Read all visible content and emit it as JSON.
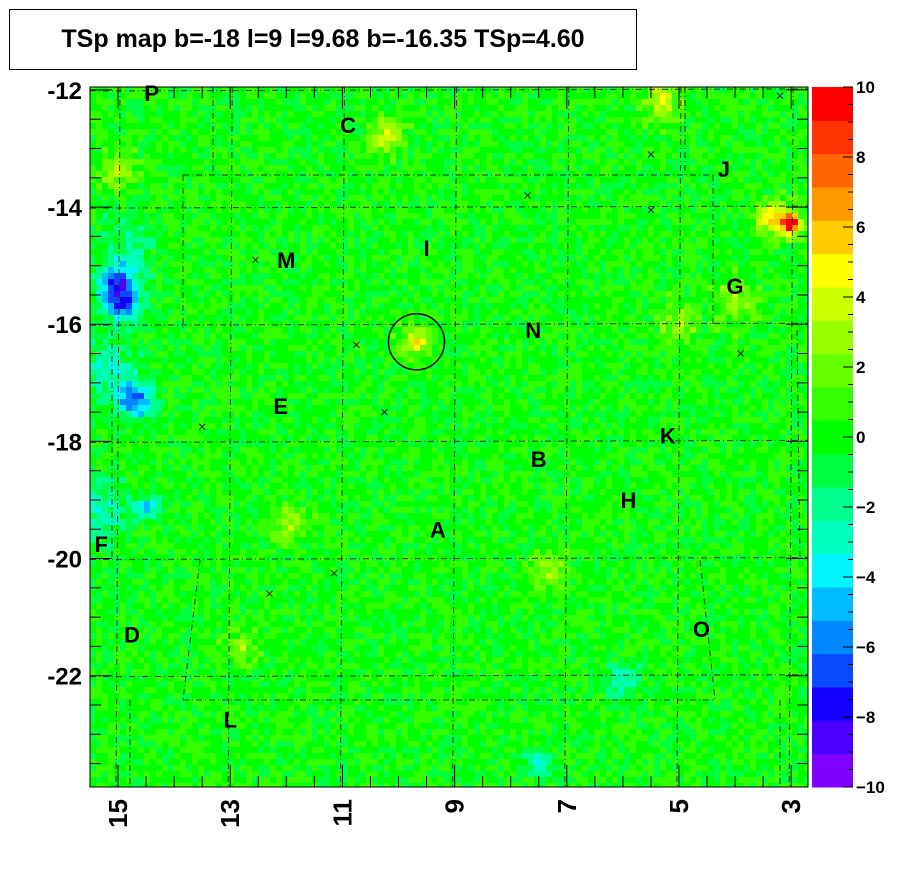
{
  "title": "TSp map b=-18 l=9 l=9.68 b=-16.35 TSp=4.60",
  "chart_data": {
    "type": "heatmap",
    "title": "TSp map b=-18 l=9 l=9.68 b=-16.35 TSp=4.60",
    "xlabel": "",
    "ylabel": "",
    "xlim": [
      15.5,
      2.7
    ],
    "ylim": [
      -23.9,
      -11.95
    ],
    "x_ticks": [
      15,
      13,
      11,
      9,
      7,
      5,
      3
    ],
    "y_ticks": [
      -12,
      -14,
      -16,
      -18,
      -20,
      -22
    ],
    "z_range": [
      -10,
      10
    ],
    "z_ticks": [
      10,
      8,
      6,
      4,
      2,
      0,
      -2,
      -4,
      -6,
      -8,
      -10
    ],
    "palette": [
      "#7f00ff",
      "#4b00ff",
      "#1400ff",
      "#0a4bff",
      "#0088ff",
      "#00bbff",
      "#00f5ff",
      "#00ffbf",
      "#00ff8c",
      "#00ff40",
      "#00ff00",
      "#33ff00",
      "#66ff00",
      "#99ff00",
      "#ccff00",
      "#ffff00",
      "#ffcc00",
      "#ff9900",
      "#ff6600",
      "#ff3300",
      "#ff0000"
    ],
    "background_color": "#1ef01a",
    "hotspots": [
      {
        "l": 15.0,
        "b": -15.3,
        "z": -7,
        "r": 0.35
      },
      {
        "l": 14.9,
        "b": -15.7,
        "z": -6,
        "r": 0.3
      },
      {
        "l": 14.7,
        "b": -17.3,
        "z": -7,
        "r": 0.3
      },
      {
        "l": 15.2,
        "b": -16.8,
        "z": -3,
        "r": 0.5
      },
      {
        "l": 15.3,
        "b": -19.2,
        "z": -3,
        "r": 0.5
      },
      {
        "l": 14.5,
        "b": -19.1,
        "z": -4,
        "r": 0.2
      },
      {
        "l": 14.8,
        "b": -14.6,
        "z": -2,
        "r": 0.5
      },
      {
        "l": 3.0,
        "b": -14.3,
        "z": 9,
        "r": 0.18
      },
      {
        "l": 3.3,
        "b": -14.2,
        "z": 5,
        "r": 0.3
      },
      {
        "l": 9.68,
        "b": -16.3,
        "z": 5,
        "r": 0.25
      },
      {
        "l": 10.2,
        "b": -12.8,
        "z": 4,
        "r": 0.3
      },
      {
        "l": 5.3,
        "b": -12.2,
        "z": 4,
        "r": 0.3
      },
      {
        "l": 7.3,
        "b": -20.2,
        "z": 3,
        "r": 0.3
      },
      {
        "l": 12.0,
        "b": -19.4,
        "z": 3,
        "r": 0.3
      },
      {
        "l": 15.0,
        "b": -13.4,
        "z": 3,
        "r": 0.3
      },
      {
        "l": 5.0,
        "b": -16.0,
        "z": 3,
        "r": 0.3
      },
      {
        "l": 4.0,
        "b": -15.6,
        "z": 3,
        "r": 0.35
      },
      {
        "l": 6.0,
        "b": -22.1,
        "z": -3,
        "r": 0.3
      },
      {
        "l": 7.5,
        "b": -23.5,
        "z": -3,
        "r": 0.25
      },
      {
        "l": 12.8,
        "b": -21.5,
        "z": 3,
        "r": 0.25
      }
    ],
    "circle": {
      "l": 9.68,
      "b": -16.3,
      "radius_l": 0.5
    },
    "crosses": [
      {
        "l": 3.2,
        "b": -12.1
      },
      {
        "l": 5.5,
        "b": -13.1
      },
      {
        "l": 5.5,
        "b": -14.05
      },
      {
        "l": 7.7,
        "b": -13.8
      },
      {
        "l": 3.9,
        "b": -16.5
      },
      {
        "l": 10.75,
        "b": -16.35
      },
      {
        "l": 10.25,
        "b": -17.5
      },
      {
        "l": 12.55,
        "b": -14.9
      },
      {
        "l": 13.5,
        "b": -17.75
      },
      {
        "l": 11.15,
        "b": -20.25
      },
      {
        "l": 12.3,
        "b": -20.6
      }
    ],
    "region_labels": [
      {
        "text": "P",
        "l": 14.4,
        "b": -12.05
      },
      {
        "text": "C",
        "l": 10.9,
        "b": -12.6
      },
      {
        "text": "J",
        "l": 4.2,
        "b": -13.35
      },
      {
        "text": "I",
        "l": 9.5,
        "b": -14.7
      },
      {
        "text": "M",
        "l": 12.0,
        "b": -14.9
      },
      {
        "text": "G",
        "l": 4.0,
        "b": -15.35
      },
      {
        "text": "N",
        "l": 7.6,
        "b": -16.1
      },
      {
        "text": "E",
        "l": 12.1,
        "b": -17.4
      },
      {
        "text": "K",
        "l": 5.2,
        "b": -17.9
      },
      {
        "text": "B",
        "l": 7.5,
        "b": -18.3
      },
      {
        "text": "H",
        "l": 5.9,
        "b": -19.0
      },
      {
        "text": "A",
        "l": 9.3,
        "b": -19.5
      },
      {
        "text": "F",
        "l": 15.3,
        "b": -19.75
      },
      {
        "text": "D",
        "l": 14.75,
        "b": -21.3
      },
      {
        "text": "O",
        "l": 4.6,
        "b": -21.2
      },
      {
        "text": "L",
        "l": 13.0,
        "b": -22.75
      }
    ]
  }
}
